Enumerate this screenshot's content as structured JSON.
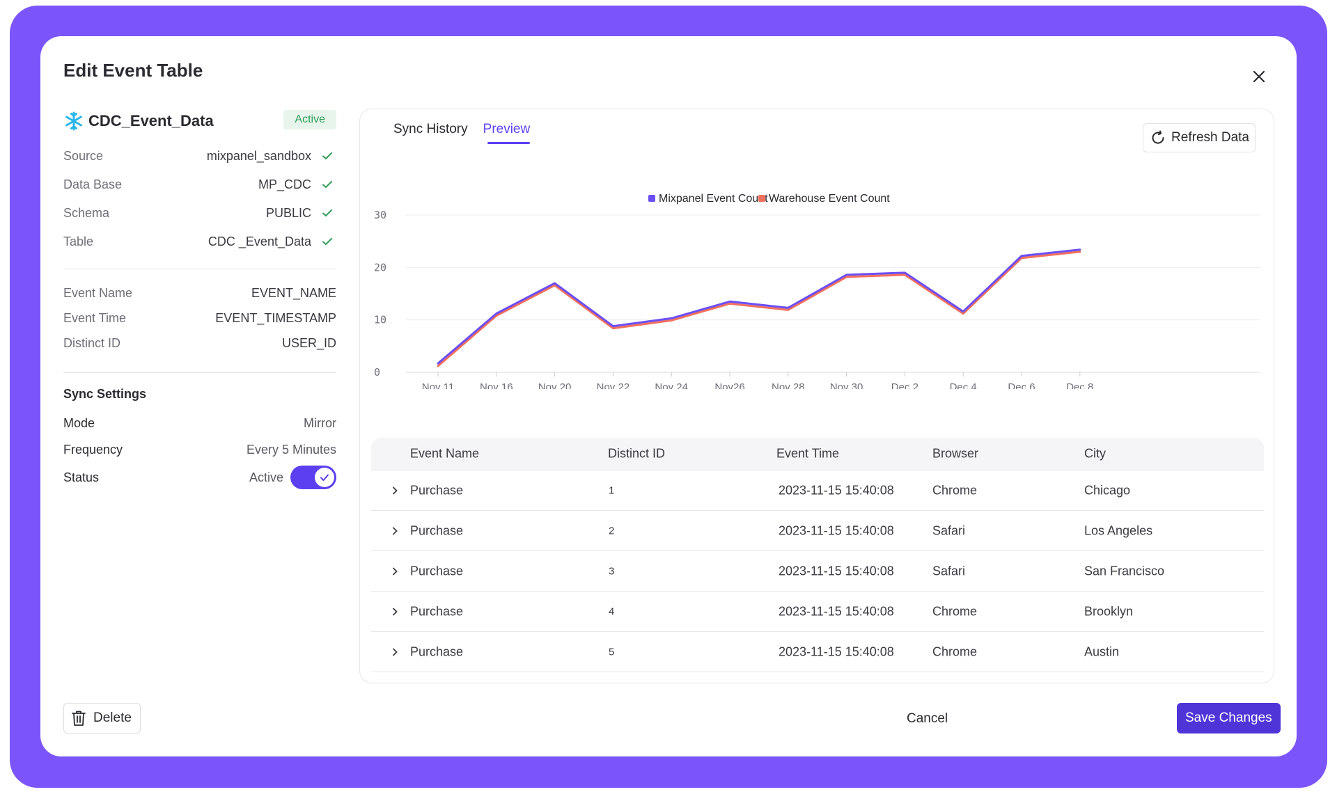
{
  "modal": {
    "title": "Edit Event Table"
  },
  "source": {
    "name": "CDC_Event_Data",
    "status_badge": "Active",
    "fields": [
      {
        "label": "Source",
        "value": "mixpanel_sandbox"
      },
      {
        "label": "Data Base",
        "value": "MP_CDC"
      },
      {
        "label": "Schema",
        "value": "PUBLIC"
      },
      {
        "label": "Table",
        "value": "CDC _Event_Data"
      }
    ]
  },
  "mapping": {
    "fields": [
      {
        "label": "Event Name",
        "value": "EVENT_NAME"
      },
      {
        "label": "Event Time",
        "value": "EVENT_TIMESTAMP"
      },
      {
        "label": "Distinct ID",
        "value": "USER_ID"
      }
    ]
  },
  "sync_settings": {
    "title": "Sync Settings",
    "mode_label": "Mode",
    "mode_value": "Mirror",
    "frequency_label": "Frequency",
    "frequency_value": "Every 5 Minutes",
    "status_label": "Status",
    "status_value": "Active",
    "status_enabled": true
  },
  "tabs": [
    {
      "label": "Sync History",
      "active": false
    },
    {
      "label": "Preview",
      "active": true
    }
  ],
  "toolbar": {
    "refresh_label": "Refresh Data"
  },
  "chart_data": {
    "type": "line",
    "categories": [
      "Nov 11",
      "Nov 16",
      "Nov 20",
      "Nov 22",
      "Nov 24",
      "Nov26",
      "Nov 28",
      "Nov 30",
      "Dec 2",
      "Dec 4",
      "Dec 6",
      "Dec 8"
    ],
    "series": [
      {
        "name": "Mixpanel Event Count",
        "color": "#6b4ef5",
        "values": [
          1.7,
          11.2,
          17.0,
          8.8,
          10.3,
          13.5,
          12.3,
          18.6,
          19.0,
          11.6,
          22.2,
          23.4
        ]
      },
      {
        "name": "Warehouse Event Count",
        "color": "#f2705c",
        "values": [
          1.2,
          10.8,
          16.6,
          8.4,
          9.9,
          13.1,
          11.9,
          18.2,
          18.6,
          11.2,
          21.8,
          23.0
        ]
      }
    ],
    "yticks": [
      "0",
      "10",
      "20",
      "30"
    ],
    "ylim": [
      0,
      30
    ],
    "legend": "top-center",
    "grid": true
  },
  "table": {
    "columns": [
      "Event Name",
      "Distinct ID",
      "Event Time",
      "Browser",
      "City"
    ],
    "rows": [
      [
        "Purchase",
        "1",
        "2023-11-15 15:40:08",
        "Chrome",
        "Chicago"
      ],
      [
        "Purchase",
        "2",
        "2023-11-15 15:40:08",
        "Safari",
        "Los Angeles"
      ],
      [
        "Purchase",
        "3",
        "2023-11-15 15:40:08",
        "Safari",
        "San Francisco"
      ],
      [
        "Purchase",
        "4",
        "2023-11-15 15:40:08",
        "Chrome",
        "Brooklyn"
      ],
      [
        "Purchase",
        "5",
        "2023-11-15 15:40:08",
        "Chrome",
        "Austin"
      ]
    ]
  },
  "footer": {
    "delete_label": "Delete",
    "cancel_label": "Cancel",
    "save_label": "Save Changes"
  },
  "colors": {
    "accent": "#5b3ff0",
    "frame": "#7b55fa",
    "success": "#2f9e57"
  }
}
